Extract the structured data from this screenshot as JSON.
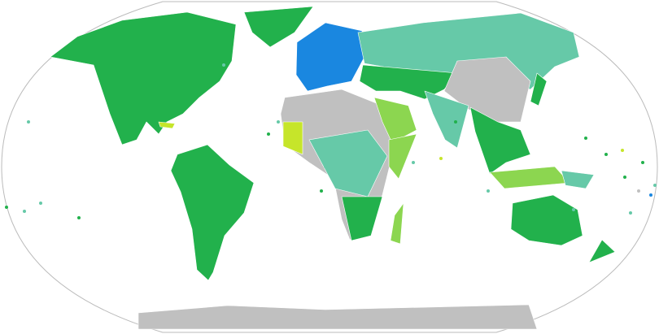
{
  "map": {
    "projection": "robinson",
    "colors": {
      "green": "#22b14c",
      "teal": "#66c9a8",
      "blue": "#1a87e0",
      "gray": "#c0c0c0",
      "light_green": "#8cd650",
      "yellow_green": "#c6e52a",
      "ocean": "#ffffff",
      "border": "#bbbbbb"
    },
    "regions": [
      {
        "id": "north-america",
        "color": "green"
      },
      {
        "id": "greenland",
        "color": "green"
      },
      {
        "id": "south-america",
        "color": "green"
      },
      {
        "id": "europe",
        "color": "blue"
      },
      {
        "id": "russia",
        "color": "teal"
      },
      {
        "id": "central-asia",
        "color": "green"
      },
      {
        "id": "china",
        "color": "gray"
      },
      {
        "id": "india",
        "color": "teal"
      },
      {
        "id": "southeast-asia",
        "color": "green"
      },
      {
        "id": "africa-north",
        "color": "gray"
      },
      {
        "id": "africa-central",
        "color": "teal"
      },
      {
        "id": "africa-south",
        "color": "green"
      },
      {
        "id": "arabia",
        "color": "light_green"
      },
      {
        "id": "horn-of-africa",
        "color": "light_green"
      },
      {
        "id": "west-africa",
        "color": "yellow_green"
      },
      {
        "id": "madagascar",
        "color": "light_green"
      },
      {
        "id": "australia",
        "color": "green"
      },
      {
        "id": "new-zealand",
        "color": "green"
      },
      {
        "id": "japan",
        "color": "green"
      },
      {
        "id": "indonesia",
        "color": "light_green"
      },
      {
        "id": "papua",
        "color": "teal"
      },
      {
        "id": "antarctica",
        "color": "gray"
      },
      {
        "id": "caribbean",
        "color": "yellow_green"
      }
    ]
  }
}
